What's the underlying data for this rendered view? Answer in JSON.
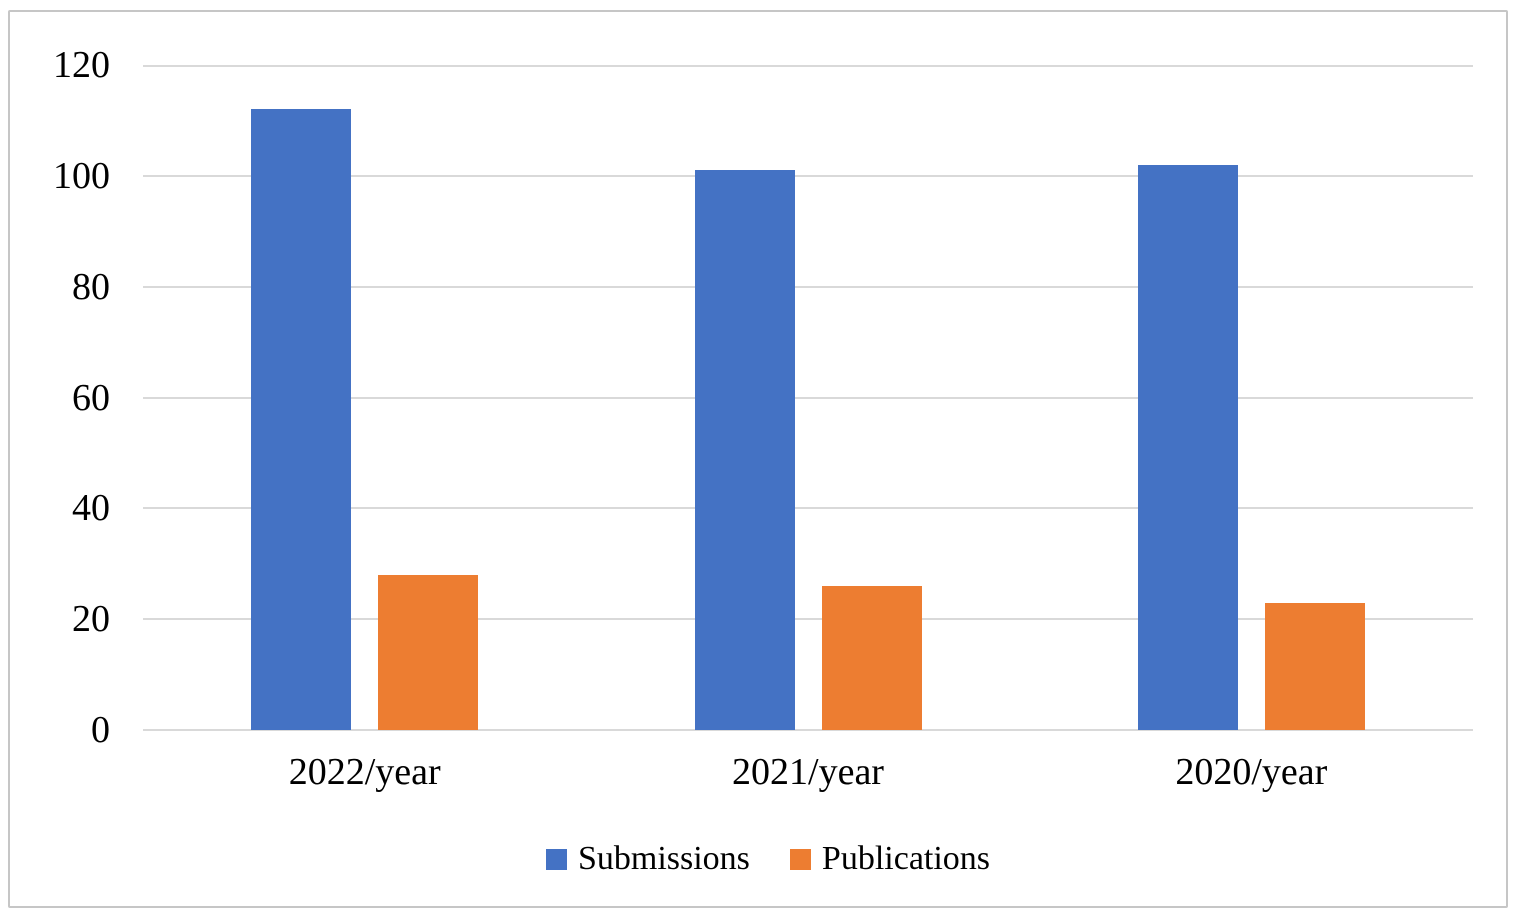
{
  "chart_data": {
    "type": "bar",
    "title": "",
    "xlabel": "",
    "ylabel": "",
    "categories": [
      "2022/year",
      "2021/year",
      "2020/year"
    ],
    "series": [
      {
        "name": "Submissions",
        "color": "#4472C4",
        "values": [
          112,
          101,
          102
        ]
      },
      {
        "name": "Publications",
        "color": "#ED7D31",
        "values": [
          28,
          26,
          23
        ]
      }
    ],
    "ylim": [
      0,
      120
    ],
    "yticks": [
      0,
      20,
      40,
      60,
      80,
      100,
      120
    ],
    "grid": true,
    "gridline_color": "#d9d9d9",
    "frame_border_color": "#c6c6c6",
    "background_color": "#ffffff",
    "text_color": "#000000",
    "legend_position": "bottom",
    "legend": [
      {
        "label": "Submissions",
        "color": "#4472C4"
      },
      {
        "label": "Publications",
        "color": "#ED7D31"
      }
    ]
  }
}
